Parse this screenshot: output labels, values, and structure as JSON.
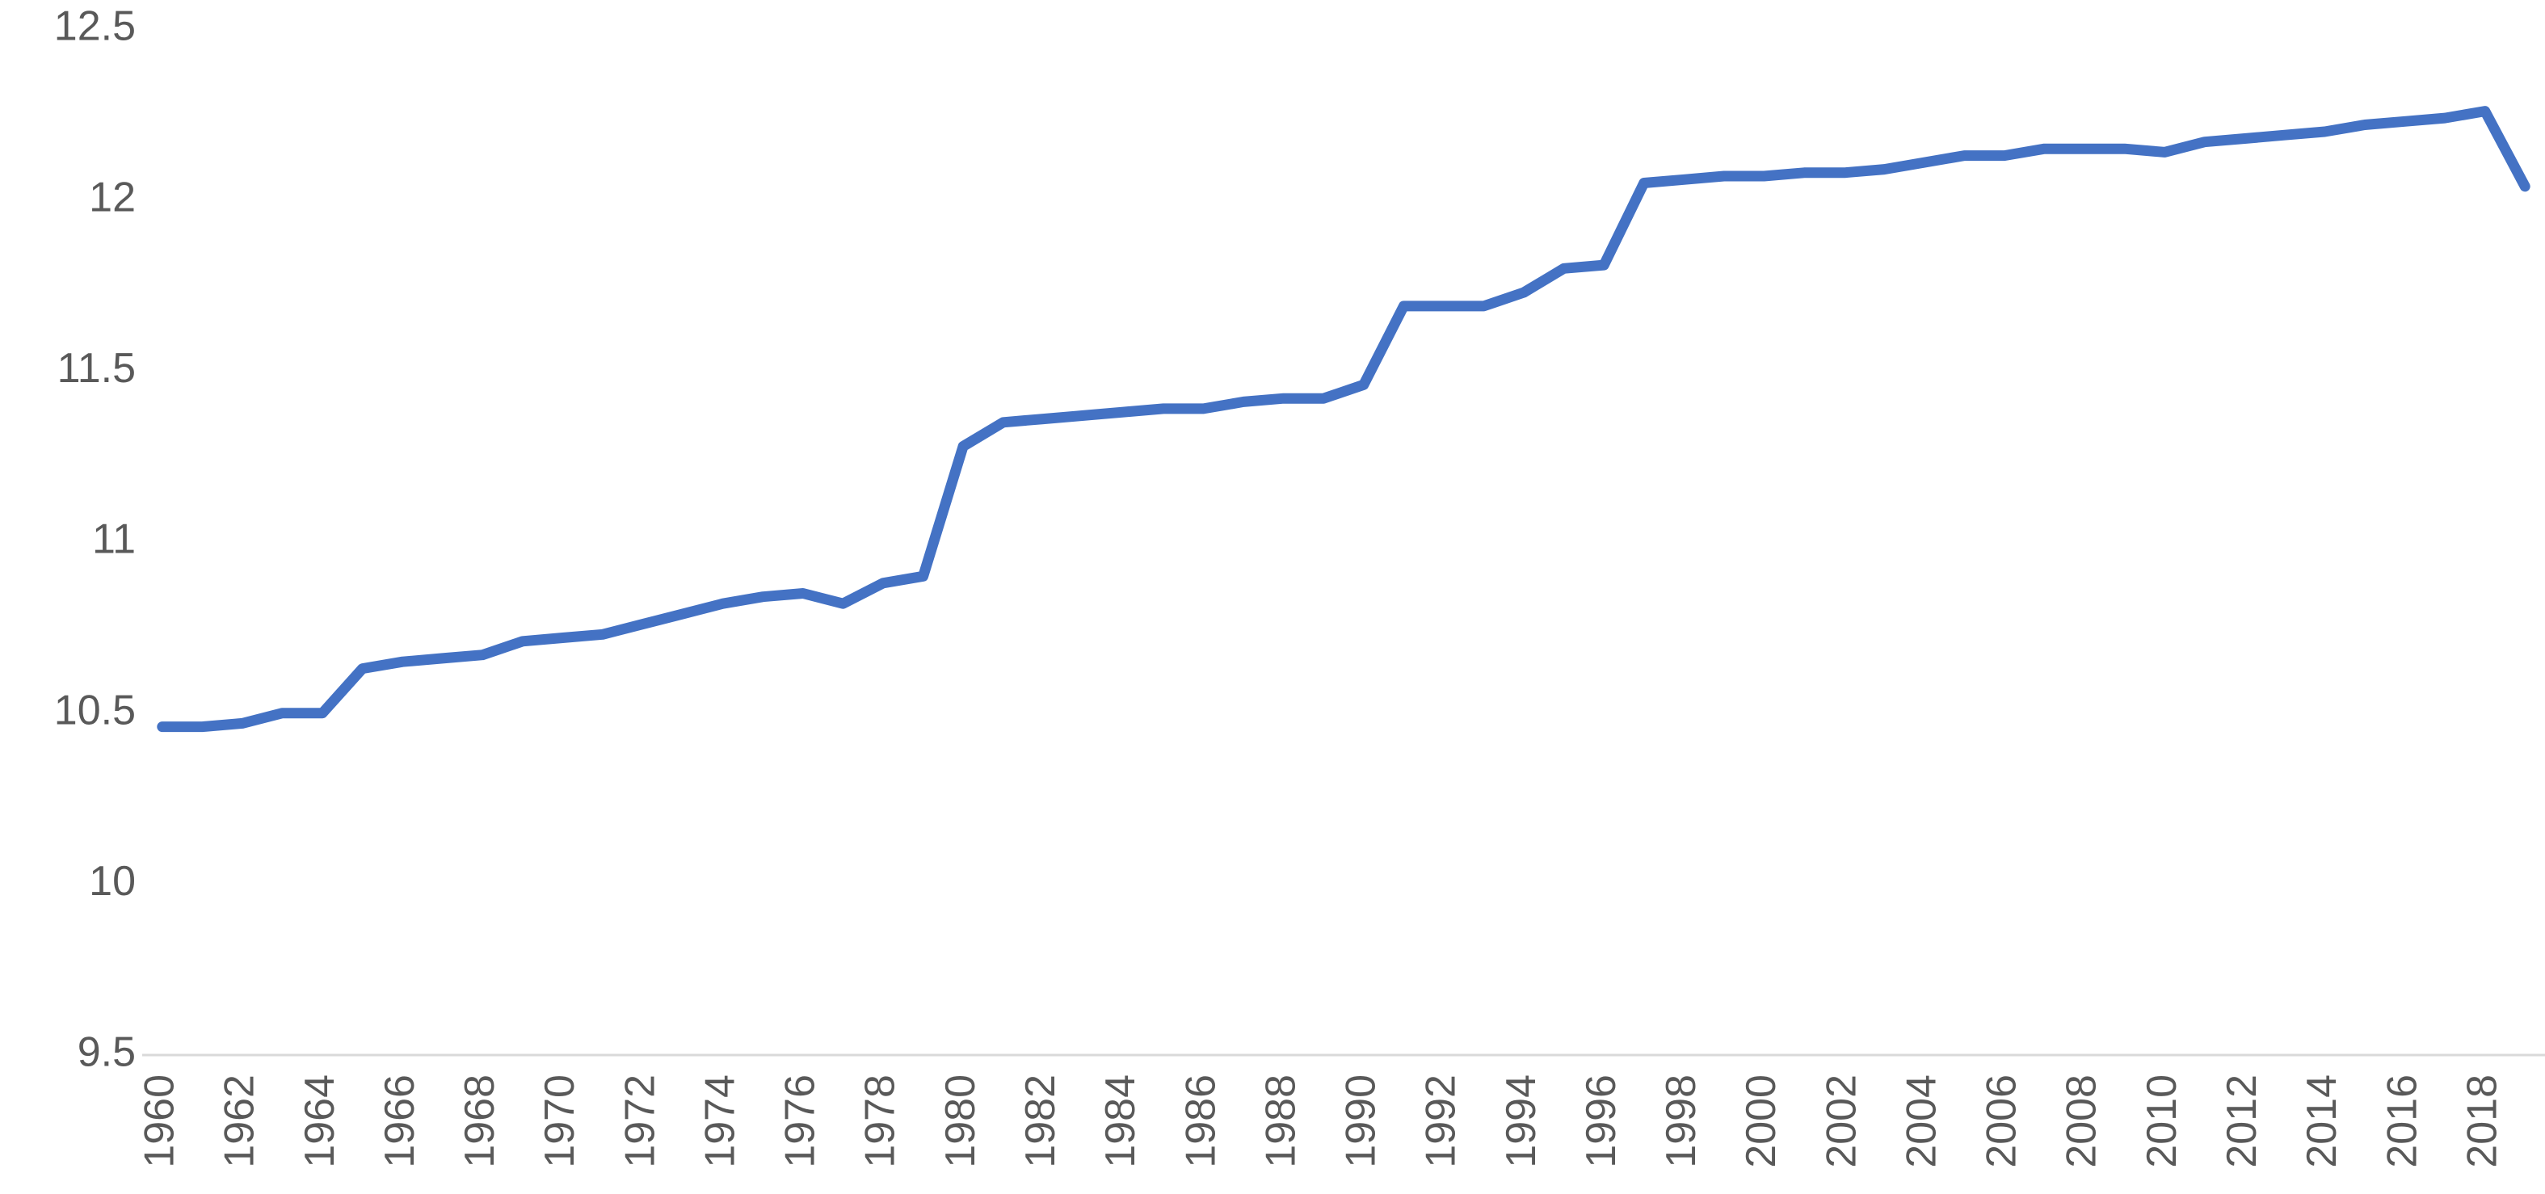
{
  "chart_data": {
    "type": "line",
    "categories": [
      "1960",
      null,
      "1962",
      null,
      "1964",
      null,
      "1966",
      null,
      "1968",
      null,
      "1970",
      null,
      "1972",
      null,
      "1974",
      null,
      "1976",
      null,
      "1978",
      null,
      "1980",
      null,
      "1982",
      null,
      "1984",
      null,
      "1986",
      null,
      "1988",
      null,
      "1990",
      null,
      "1992",
      null,
      "1994",
      null,
      "1996",
      null,
      "1998",
      null,
      "2000",
      null,
      "2002",
      null,
      "2004",
      null,
      "2006",
      null,
      "2008",
      null,
      "2010",
      null,
      "2012",
      null,
      "2014",
      null,
      "2016",
      null,
      "2018",
      null
    ],
    "values": [
      10.46,
      10.46,
      10.47,
      10.5,
      10.5,
      10.63,
      10.65,
      10.66,
      10.67,
      10.71,
      10.72,
      10.73,
      10.76,
      10.79,
      10.82,
      10.84,
      10.85,
      10.82,
      10.88,
      10.9,
      11.28,
      11.35,
      11.36,
      11.37,
      11.38,
      11.39,
      11.39,
      11.41,
      11.42,
      11.42,
      11.46,
      11.69,
      11.69,
      11.69,
      11.73,
      11.8,
      11.81,
      12.05,
      12.06,
      12.07,
      12.07,
      12.08,
      12.08,
      12.09,
      12.11,
      12.13,
      12.13,
      12.15,
      12.15,
      12.15,
      12.14,
      12.17,
      12.18,
      12.19,
      12.2,
      12.22,
      12.23,
      12.24,
      12.26,
      12.04
    ],
    "color": "#4472c4",
    "ylim": [
      9.5,
      12.5
    ],
    "yticks": [
      9.5,
      10,
      10.5,
      11,
      11.5,
      12,
      12.5
    ],
    "grid": false
  }
}
